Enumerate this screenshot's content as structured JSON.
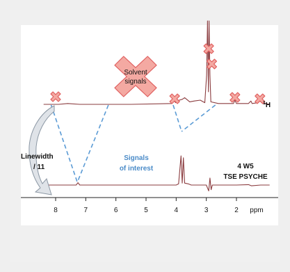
{
  "chart_data": {
    "type": "line",
    "title": "",
    "xlabel": "ppm",
    "x_ticks": [
      "8",
      "7",
      "6",
      "5",
      "4",
      "3",
      "2"
    ],
    "x_range": [
      8.4,
      0.9
    ],
    "x_reversed": true,
    "grid": false,
    "series": [
      {
        "label": "1H",
        "points": [
          [
            8.4,
            0
          ],
          [
            7.9,
            0
          ],
          [
            7.6,
            0.01
          ],
          [
            7.2,
            0
          ],
          [
            5.5,
            0
          ],
          [
            4.15,
            0.01
          ],
          [
            4.08,
            0.05
          ],
          [
            4.02,
            0.02
          ],
          [
            3.9,
            0.05
          ],
          [
            3.8,
            0.06
          ],
          [
            3.72,
            0.08
          ],
          [
            3.65,
            0.06
          ],
          [
            3.55,
            0.03
          ],
          [
            3.4,
            0.04
          ],
          [
            3.2,
            0.05
          ],
          [
            3.05,
            0.02
          ],
          [
            2.99,
            0.35
          ],
          [
            2.96,
            1.0
          ],
          [
            2.93,
            0.15
          ],
          [
            2.91,
            1.0
          ],
          [
            2.88,
            0.35
          ],
          [
            2.85,
            0.03
          ],
          [
            2.6,
            0.01
          ],
          [
            2.1,
            0.01
          ],
          [
            2.05,
            0.05
          ],
          [
            2.0,
            0.01
          ],
          [
            1.6,
            0.01
          ],
          [
            1.52,
            0.04
          ],
          [
            1.48,
            0.01
          ],
          [
            1.28,
            0.02
          ],
          [
            1.22,
            0.04
          ],
          [
            1.16,
            0.02
          ],
          [
            0.9,
            0
          ]
        ]
      },
      {
        "label": "4 W5 TSE PSYCHE",
        "points": [
          [
            8.4,
            0
          ],
          [
            7.32,
            0
          ],
          [
            7.26,
            0.06
          ],
          [
            7.2,
            0
          ],
          [
            4.0,
            0
          ],
          [
            3.92,
            0.03
          ],
          [
            3.84,
            0.75
          ],
          [
            3.8,
            0.05
          ],
          [
            3.76,
            0.7
          ],
          [
            3.72,
            0.05
          ],
          [
            3.6,
            0.03
          ],
          [
            3.5,
            0.0
          ],
          [
            3.0,
            0.0
          ],
          [
            2.92,
            -0.15
          ],
          [
            2.88,
            0.18
          ],
          [
            2.84,
            -0.12
          ],
          [
            2.8,
            0
          ],
          [
            2.0,
            0
          ],
          [
            1.6,
            0.01
          ],
          [
            1.5,
            -0.02
          ],
          [
            1.2,
            0
          ],
          [
            0.9,
            0
          ]
        ]
      }
    ],
    "annotations": {
      "solvent_label": [
        "Solvent",
        "signals"
      ],
      "solvent_x_marks_ppm": [
        8.0,
        4.05,
        2.92,
        2.82,
        2.05,
        1.22
      ],
      "linewidth_label": [
        "Linewidth",
        "/ 11"
      ],
      "signals_label": [
        "Signals",
        "of interest"
      ],
      "h1_label": "1H",
      "sequence_label": [
        "4 W5",
        "TSE PSYCHE"
      ]
    },
    "colors": {
      "spectrum": "#8a3b3e",
      "dashed": "#5b9bd5",
      "x_mark_fill": "#f4a9a2",
      "x_mark_stroke": "#e06060",
      "arrow_fill": "#dfe3e8",
      "arrow_stroke": "#8a96a3",
      "signals_text": "#4a8bc8"
    }
  }
}
